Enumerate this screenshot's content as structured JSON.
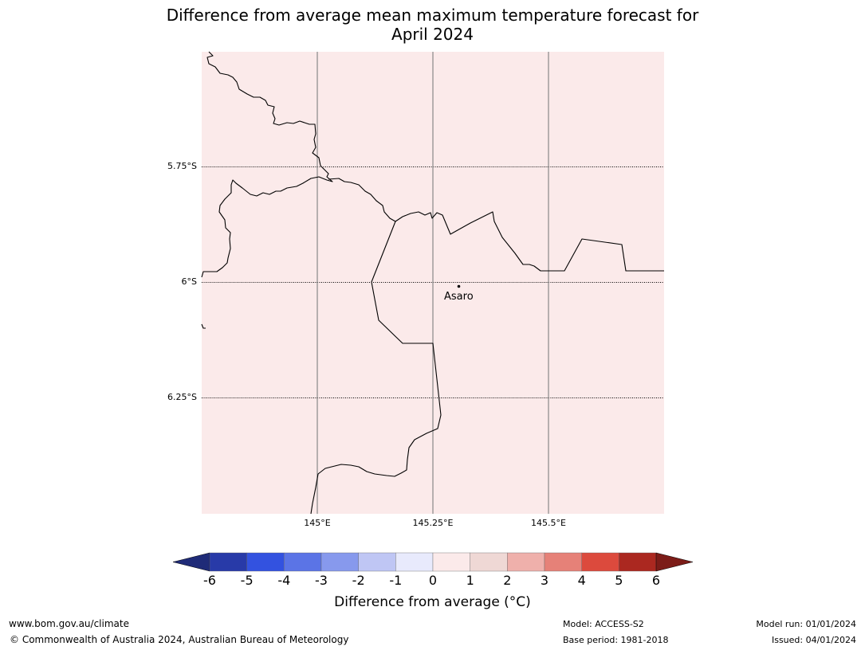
{
  "title": {
    "line1": "Difference from average mean maximum temperature forecast for",
    "line2": "April 2024"
  },
  "map": {
    "fill_color": "#fbeaea",
    "lat_labels": [
      "5.75°S",
      "6°S",
      "6.25°S"
    ],
    "lon_labels": [
      "145°E",
      "145.25°E",
      "145.5°E"
    ],
    "place": {
      "name": "Asaro"
    }
  },
  "colorbar": {
    "ticks": [
      "-6",
      "-5",
      "-4",
      "-3",
      "-2",
      "-1",
      "0",
      "1",
      "2",
      "3",
      "4",
      "5",
      "6"
    ],
    "colors": [
      "#283aa8",
      "#3352e0",
      "#5b74e6",
      "#8799ed",
      "#bfc6f4",
      "#e8eafc",
      "#fbeaea",
      "#efd8d5",
      "#efb0ab",
      "#e68178",
      "#dc4a3d",
      "#ab2820"
    ],
    "under_color": "#1f2b78",
    "over_color": "#7c1c18",
    "title": "Difference from average (°C)"
  },
  "footer": {
    "website": "www.bom.gov.au/climate",
    "copyright": "© Commonwealth of Australia 2024, Australian Bureau of Meteorology",
    "model": "Model: ACCESS-S2",
    "base_period": "Base period: 1981-2018",
    "model_run": "Model run: 01/01/2024",
    "issued": "Issued: 04/01/2024"
  }
}
